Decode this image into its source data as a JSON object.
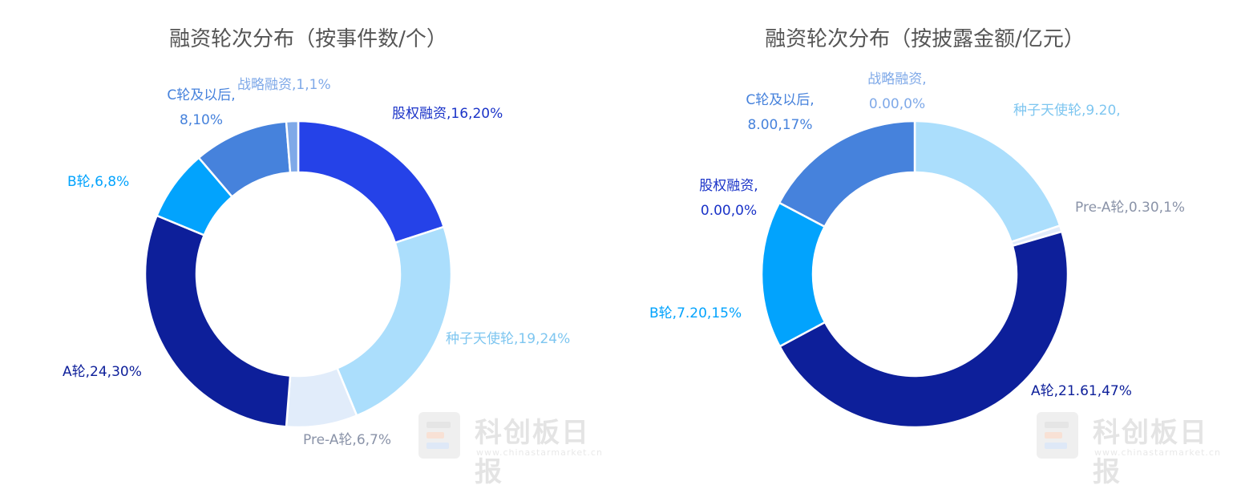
{
  "chart_data": [
    {
      "type": "pie",
      "title": "融资轮次分布（按事件数/个）",
      "slices": [
        {
          "category": "股权融资",
          "value": 16,
          "percent": 20,
          "label_lines": [
            "股权融资,16,20%"
          ],
          "color": "#2542e8"
        },
        {
          "category": "种子天使轮",
          "value": 19,
          "percent": 24,
          "label_lines": [
            "种子天使轮,19,24%"
          ],
          "color": "#abdefc"
        },
        {
          "category": "Pre-A轮",
          "value": 6,
          "percent": 7,
          "label_lines": [
            "Pre-A轮,6,7%"
          ],
          "color": "#e1ecfa"
        },
        {
          "category": "A轮",
          "value": 24,
          "percent": 30,
          "label_lines": [
            "A轮,24,30%"
          ],
          "color": "#0d1f9a"
        },
        {
          "category": "B轮",
          "value": 6,
          "percent": 8,
          "label_lines": [
            "B轮,6,8%"
          ],
          "color": "#02a3fd"
        },
        {
          "category": "C轮及以后",
          "value": 8,
          "percent": 10,
          "label_lines": [
            "C轮及以后,",
            "8,10%"
          ],
          "color": "#4682dc"
        },
        {
          "category": "战略融资",
          "value": 1,
          "percent": 1,
          "label_lines": [
            "战略融资,1,1%"
          ],
          "color": "#7fa9e8"
        }
      ]
    },
    {
      "type": "pie",
      "title": "融资轮次分布（按披露金额/亿元）",
      "slices": [
        {
          "category": "种子天使轮",
          "value": 9.2,
          "percent": 20,
          "label_lines": [
            "种子天使轮,9.20,"
          ],
          "color": "#abdefc"
        },
        {
          "category": "Pre-A轮",
          "value": 0.3,
          "percent": 1,
          "label_lines": [
            "Pre-A轮,0.30,1%"
          ],
          "color": "#e1ecfa"
        },
        {
          "category": "A轮",
          "value": 21.61,
          "percent": 47,
          "label_lines": [
            "A轮,21.61,47%"
          ],
          "color": "#0d1f9a"
        },
        {
          "category": "B轮",
          "value": 7.2,
          "percent": 15,
          "label_lines": [
            "B轮,7.20,15%"
          ],
          "color": "#02a3fd"
        },
        {
          "category": "C轮及以后",
          "value": 8.0,
          "percent": 17,
          "label_lines": [
            "C轮及以后,",
            "8.00,17%"
          ],
          "color": "#4682dc"
        },
        {
          "category": "股权融资",
          "value": 0.0,
          "percent": 0,
          "label_lines": [
            "股权融资,",
            "0.00,0%"
          ],
          "color": "#2542e8"
        },
        {
          "category": "战略融资",
          "value": 0.0,
          "percent": 0,
          "label_lines": [
            "战略融资,",
            "0.00,0%"
          ],
          "color": "#7fa9e8"
        }
      ]
    }
  ],
  "watermark": {
    "name": "科创板日报",
    "url": "www.chinastarmarket.cn"
  }
}
